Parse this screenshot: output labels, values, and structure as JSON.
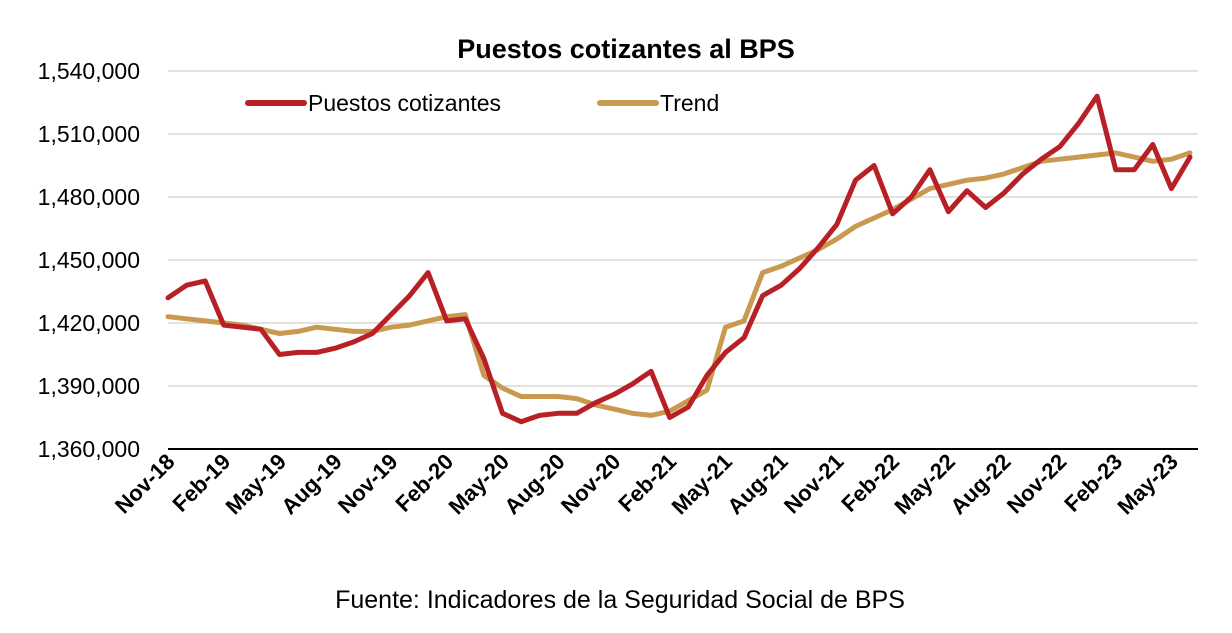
{
  "colors": {
    "series_1": "#b72025",
    "series_2": "#c9994f",
    "grid": "#d9d9d9"
  },
  "source_note": "Fuente: Indicadores de la Seguridad Social de BPS",
  "chart_data": {
    "type": "line",
    "title": "Puestos cotizantes al BPS",
    "xlabel": "",
    "ylabel": "",
    "ylim": [
      1360000,
      1540000
    ],
    "yticks": [
      "1,360,000",
      "1,390,000",
      "1,420,000",
      "1,450,000",
      "1,480,000",
      "1,510,000",
      "1,540,000"
    ],
    "ytick_values": [
      1360000,
      1390000,
      1420000,
      1450000,
      1480000,
      1510000,
      1540000
    ],
    "grid": true,
    "legend_position": "top",
    "categories": [
      "Nov-18",
      "Dec-18",
      "Jan-19",
      "Feb-19",
      "Mar-19",
      "Apr-19",
      "May-19",
      "Jun-19",
      "Jul-19",
      "Aug-19",
      "Sep-19",
      "Oct-19",
      "Nov-19",
      "Dec-19",
      "Jan-20",
      "Feb-20",
      "Mar-20",
      "Apr-20",
      "May-20",
      "Jun-20",
      "Jul-20",
      "Aug-20",
      "Sep-20",
      "Oct-20",
      "Nov-20",
      "Dec-20",
      "Jan-21",
      "Feb-21",
      "Mar-21",
      "Apr-21",
      "May-21",
      "Jun-21",
      "Jul-21",
      "Aug-21",
      "Sep-21",
      "Oct-21",
      "Nov-21",
      "Dec-21",
      "Jan-22",
      "Feb-22",
      "Mar-22",
      "Apr-22",
      "May-22",
      "Jun-22",
      "Jul-22",
      "Aug-22",
      "Sep-22",
      "Oct-22",
      "Nov-22",
      "Dec-22",
      "Jan-23",
      "Feb-23",
      "Mar-23",
      "Apr-23",
      "May-23",
      "Jun-23"
    ],
    "xtick_labels": [
      "Nov-18",
      "Feb-19",
      "May-19",
      "Aug-19",
      "Nov-19",
      "Feb-20",
      "May-20",
      "Aug-20",
      "Nov-20",
      "Feb-21",
      "May-21",
      "Aug-21",
      "Nov-21",
      "Feb-22",
      "May-22",
      "Aug-22",
      "Nov-22",
      "Feb-23",
      "May-23"
    ],
    "series": [
      {
        "name": "Puestos cotizantes",
        "color": "#b72025",
        "values": [
          1432000,
          1438000,
          1440000,
          1419000,
          1418000,
          1417000,
          1405000,
          1406000,
          1406000,
          1408000,
          1411000,
          1415000,
          1424000,
          1433000,
          1444000,
          1421000,
          1422000,
          1403000,
          1377000,
          1373000,
          1376000,
          1377000,
          1377000,
          1382000,
          1386000,
          1391000,
          1397000,
          1375000,
          1380000,
          1395000,
          1406000,
          1413000,
          1433000,
          1438000,
          1446000,
          1456000,
          1467000,
          1488000,
          1495000,
          1472000,
          1480000,
          1493000,
          1473000,
          1483000,
          1475000,
          1482000,
          1491000,
          1498000,
          1504000,
          1515000,
          1528000,
          1493000,
          1493000,
          1505000,
          1484000,
          1499000
        ]
      },
      {
        "name": "Trend",
        "color": "#c9994f",
        "values": [
          1423000,
          1422000,
          1421000,
          1420000,
          1419000,
          1417000,
          1415000,
          1416000,
          1418000,
          1417000,
          1416000,
          1416000,
          1418000,
          1419000,
          1421000,
          1423000,
          1424000,
          1395000,
          1389000,
          1385000,
          1385000,
          1385000,
          1384000,
          1381000,
          1379000,
          1377000,
          1376000,
          1378000,
          1383000,
          1388000,
          1418000,
          1421000,
          1444000,
          1447000,
          1451000,
          1455000,
          1460000,
          1466000,
          1470000,
          1474000,
          1479000,
          1484000,
          1486000,
          1488000,
          1489000,
          1491000,
          1494000,
          1497000,
          1498000,
          1499000,
          1500000,
          1501000,
          1499000,
          1497000,
          1498000,
          1501000
        ]
      }
    ]
  }
}
